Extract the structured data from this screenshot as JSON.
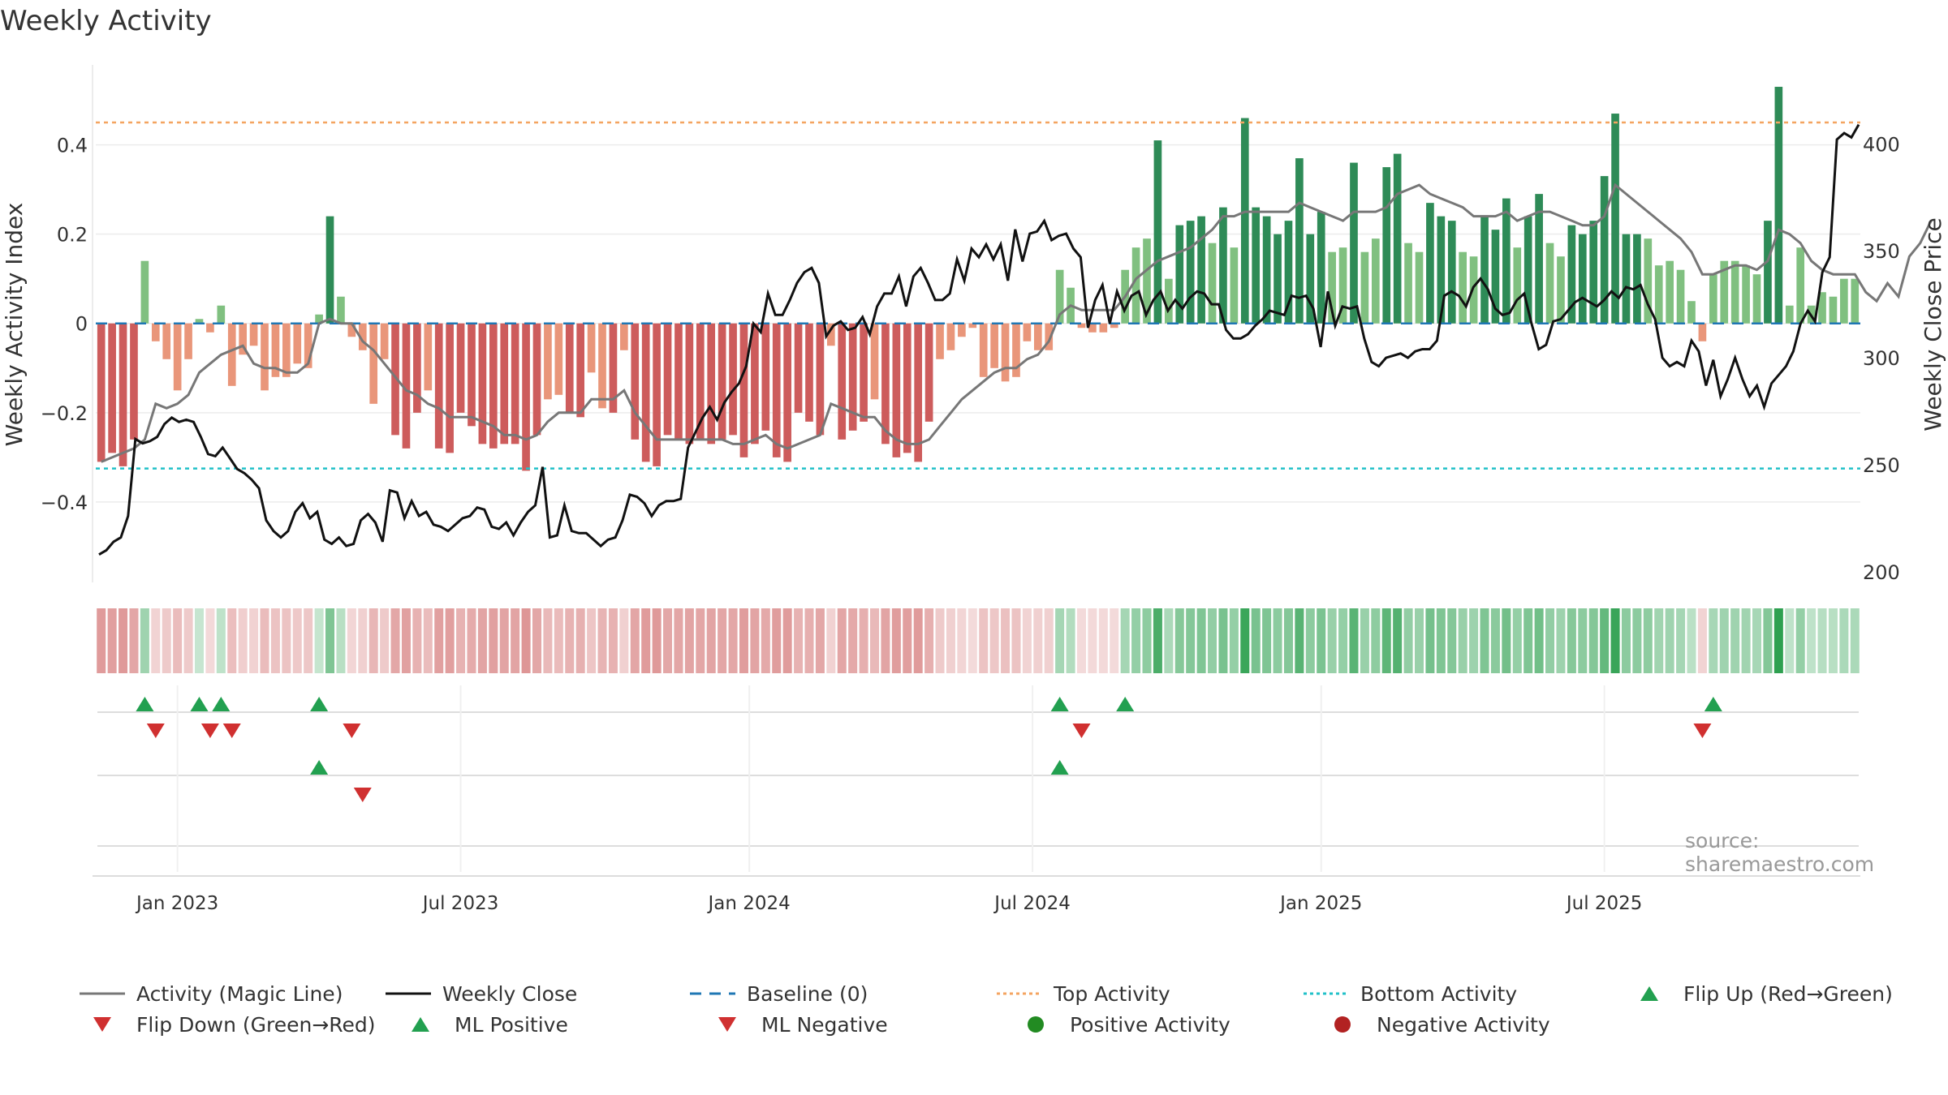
{
  "title": "Weekly Activity",
  "source": "source: sharemaestro.com",
  "colors": {
    "pos_dark": "#2e8b57",
    "pos_light": "#80c080",
    "neg_dark": "#cd5c5c",
    "neg_light": "#e9967a",
    "ml_line": "#777777",
    "close_line": "#111111",
    "baseline": "#1f77b4",
    "top": "#f4a460",
    "bottom": "#20c0c8",
    "flip_up": "#22a050",
    "flip_down": "#d03030"
  },
  "legend": [
    {
      "label": "Activity (Magic Line)",
      "icon": "line-icon",
      "style": "ml"
    },
    {
      "label": "Weekly Close",
      "icon": "line-icon",
      "style": "close"
    },
    {
      "label": "Baseline (0)",
      "icon": "dashed-line-icon",
      "style": "baseline"
    },
    {
      "label": "Top Activity",
      "icon": "dotted-line-icon",
      "style": "top"
    },
    {
      "label": "Bottom Activity",
      "icon": "dotted-line-icon",
      "style": "bottom"
    },
    {
      "label": "Flip Up (Red→Green)",
      "icon": "triangle-up-icon",
      "style": "flip_up"
    },
    {
      "label": "Flip Down (Green→Red)",
      "icon": "triangle-down-icon",
      "style": "flip_down"
    },
    {
      "label": "ML Positive",
      "icon": "triangle-up-icon",
      "style": "flip_up"
    },
    {
      "label": "ML Negative",
      "icon": "triangle-down-icon",
      "style": "flip_down"
    },
    {
      "label": "Positive Activity",
      "icon": "circle-icon",
      "style": "pos_circle"
    },
    {
      "label": "Negative Activity",
      "icon": "circle-icon",
      "style": "neg_circle"
    }
  ],
  "chart_data": {
    "type": "bar",
    "title": "Weekly Activity",
    "ylabel": "Weekly Activity Index",
    "y2label": "Weekly Close Price",
    "ylim": [
      -0.58,
      0.57
    ],
    "y2lim": [
      195,
      435
    ],
    "x_start_week": 0,
    "week_ticks": [
      {
        "label": "Jan 2023",
        "week": 7
      },
      {
        "label": "Jul 2023",
        "week": 33
      },
      {
        "label": "Jan 2024",
        "week": 59.5
      },
      {
        "label": "Jul 2024",
        "week": 85.5
      },
      {
        "label": "Jan 2025",
        "week": 112
      },
      {
        "label": "Jul 2025",
        "week": 138
      }
    ],
    "yticks": [
      {
        "value": 0.4,
        "label": "0.4"
      },
      {
        "value": 0.2,
        "label": "0.2"
      },
      {
        "value": 0,
        "label": "0"
      },
      {
        "value": -0.2,
        "label": "−0.2"
      },
      {
        "value": -0.4,
        "label": "−0.4"
      }
    ],
    "y2ticks": [
      {
        "value": 400,
        "label": "400"
      },
      {
        "value": 350,
        "label": "350"
      },
      {
        "value": 300,
        "label": "300"
      },
      {
        "value": 250,
        "label": "250"
      },
      {
        "value": 200,
        "label": "200"
      }
    ],
    "top_activity": 0.45,
    "bottom_activity": -0.325,
    "activity": [
      -0.31,
      -0.29,
      -0.32,
      -0.26,
      0.14,
      -0.04,
      -0.08,
      -0.15,
      -0.08,
      0.01,
      -0.02,
      0.04,
      -0.14,
      -0.07,
      -0.05,
      -0.15,
      -0.12,
      -0.12,
      -0.09,
      -0.1,
      0.02,
      0.24,
      0.06,
      -0.03,
      -0.06,
      -0.18,
      -0.08,
      -0.25,
      -0.28,
      -0.2,
      -0.15,
      -0.28,
      -0.29,
      -0.2,
      -0.23,
      -0.27,
      -0.28,
      -0.27,
      -0.27,
      -0.33,
      -0.25,
      -0.17,
      -0.16,
      -0.2,
      -0.21,
      -0.11,
      -0.19,
      -0.2,
      -0.06,
      -0.26,
      -0.31,
      -0.32,
      -0.25,
      -0.26,
      -0.27,
      -0.26,
      -0.27,
      -0.26,
      -0.25,
      -0.3,
      -0.27,
      -0.24,
      -0.3,
      -0.31,
      -0.2,
      -0.22,
      -0.25,
      -0.05,
      -0.26,
      -0.24,
      -0.22,
      -0.17,
      -0.27,
      -0.3,
      -0.29,
      -0.31,
      -0.22,
      -0.08,
      -0.06,
      -0.03,
      -0.01,
      -0.12,
      -0.1,
      -0.13,
      -0.12,
      -0.04,
      -0.06,
      -0.06,
      0.12,
      0.08,
      -0.01,
      -0.02,
      -0.02,
      -0.01,
      0.12,
      0.17,
      0.19,
      0.41,
      0.1,
      0.22,
      0.23,
      0.24,
      0.18,
      0.26,
      0.17,
      0.46,
      0.26,
      0.24,
      0.2,
      0.23,
      0.37,
      0.2,
      0.25,
      0.16,
      0.17,
      0.36,
      0.16,
      0.19,
      0.35,
      0.38,
      0.18,
      0.16,
      0.27,
      0.24,
      0.23,
      0.16,
      0.15,
      0.24,
      0.21,
      0.28,
      0.17,
      0.24,
      0.29,
      0.18,
      0.15,
      0.22,
      0.2,
      0.23,
      0.33,
      0.47,
      0.2,
      0.2,
      0.19,
      0.13,
      0.14,
      0.12,
      0.05,
      -0.04,
      0.11,
      0.14,
      0.14,
      0.13,
      0.11,
      0.23,
      0.53,
      0.04,
      0.17,
      0.04,
      0.07,
      0.06,
      0.1,
      0.1
    ],
    "magic_line": [
      -0.31,
      -0.3,
      -0.29,
      -0.28,
      -0.26,
      -0.18,
      -0.19,
      -0.18,
      -0.16,
      -0.11,
      -0.09,
      -0.07,
      -0.06,
      -0.05,
      -0.09,
      -0.1,
      -0.1,
      -0.11,
      -0.11,
      -0.09,
      0.0,
      0.01,
      0.0,
      0.0,
      -0.04,
      -0.06,
      -0.09,
      -0.12,
      -0.15,
      -0.16,
      -0.18,
      -0.19,
      -0.21,
      -0.21,
      -0.21,
      -0.22,
      -0.23,
      -0.25,
      -0.25,
      -0.26,
      -0.25,
      -0.22,
      -0.2,
      -0.2,
      -0.2,
      -0.17,
      -0.17,
      -0.17,
      -0.15,
      -0.2,
      -0.23,
      -0.26,
      -0.26,
      -0.26,
      -0.26,
      -0.26,
      -0.26,
      -0.26,
      -0.27,
      -0.27,
      -0.26,
      -0.25,
      -0.27,
      -0.28,
      -0.27,
      -0.26,
      -0.25,
      -0.18,
      -0.19,
      -0.2,
      -0.21,
      -0.21,
      -0.24,
      -0.26,
      -0.27,
      -0.27,
      -0.26,
      -0.23,
      -0.2,
      -0.17,
      -0.15,
      -0.13,
      -0.11,
      -0.1,
      -0.1,
      -0.08,
      -0.07,
      -0.04,
      0.02,
      0.04,
      0.03,
      0.03,
      0.03,
      0.03,
      0.06,
      0.1,
      0.12,
      0.14,
      0.15,
      0.16,
      0.17,
      0.19,
      0.21,
      0.24,
      0.24,
      0.25,
      0.25,
      0.25,
      0.25,
      0.25,
      0.27,
      0.26,
      0.25,
      0.24,
      0.23,
      0.25,
      0.25,
      0.25,
      0.26,
      0.29,
      0.3,
      0.31,
      0.29,
      0.28,
      0.27,
      0.26,
      0.24,
      0.24,
      0.24,
      0.25,
      0.23,
      0.24,
      0.25,
      0.25,
      0.24,
      0.23,
      0.22,
      0.22,
      0.24,
      0.31,
      0.29,
      0.27,
      0.25,
      0.23,
      0.21,
      0.19,
      0.16,
      0.11,
      0.11,
      0.12,
      0.13,
      0.13,
      0.12,
      0.14,
      0.21,
      0.2,
      0.18,
      0.14,
      0.12,
      0.11,
      0.11,
      0.11,
      0.07,
      0.05,
      0.09,
      0.06,
      0.15,
      0.18,
      0.23
    ],
    "weekly_close": [
      208,
      210,
      214,
      216,
      226,
      262,
      260,
      261,
      263,
      269,
      272,
      270,
      271,
      270,
      263,
      255,
      254,
      258,
      253,
      248,
      246,
      243,
      239,
      224,
      219,
      216,
      219,
      228,
      232,
      225,
      228,
      215,
      213,
      216,
      212,
      213,
      224,
      227,
      223,
      214,
      238,
      237,
      225,
      233,
      226,
      228,
      222,
      221,
      219,
      222,
      225,
      226,
      230,
      229,
      221,
      220,
      223,
      217,
      223,
      228,
      231,
      249,
      216,
      217,
      231,
      219,
      218,
      218,
      215,
      212,
      215,
      216,
      224,
      236,
      235,
      232,
      226,
      231,
      233,
      233,
      234,
      258,
      265,
      272,
      277,
      271,
      279,
      284,
      288,
      296,
      316,
      312,
      330,
      320,
      320,
      327,
      335,
      340,
      342,
      335,
      310,
      315,
      317,
      313,
      314,
      319,
      311,
      324,
      330,
      330,
      338,
      324,
      338,
      342,
      335,
      327,
      327,
      330,
      346,
      336,
      351,
      347,
      353,
      346,
      353,
      336,
      360,
      345,
      358,
      359,
      364,
      355,
      357,
      358,
      351,
      347,
      314,
      327,
      334,
      316,
      331,
      322,
      329,
      331,
      320,
      327,
      331,
      322,
      327,
      323,
      328,
      331,
      330,
      325,
      325,
      313,
      309,
      309,
      311,
      315,
      318,
      322,
      321,
      320,
      329,
      328,
      329,
      323,
      305,
      331,
      315,
      324,
      323,
      324,
      309,
      298,
      296,
      300,
      301,
      302,
      300,
      303,
      304,
      304,
      308,
      329,
      331,
      329,
      324,
      333,
      337,
      332,
      323,
      320,
      321,
      327,
      330,
      316,
      304,
      306,
      317,
      318,
      322,
      326,
      328,
      326,
      324,
      327,
      331,
      328,
      333,
      332,
      334,
      325,
      318,
      300,
      296,
      298,
      296,
      308,
      303,
      287,
      299,
      282,
      290,
      300,
      290,
      282,
      287,
      277,
      288,
      292,
      296,
      303,
      316,
      322,
      317,
      340,
      347,
      402,
      405,
      403,
      409
    ]
  }
}
